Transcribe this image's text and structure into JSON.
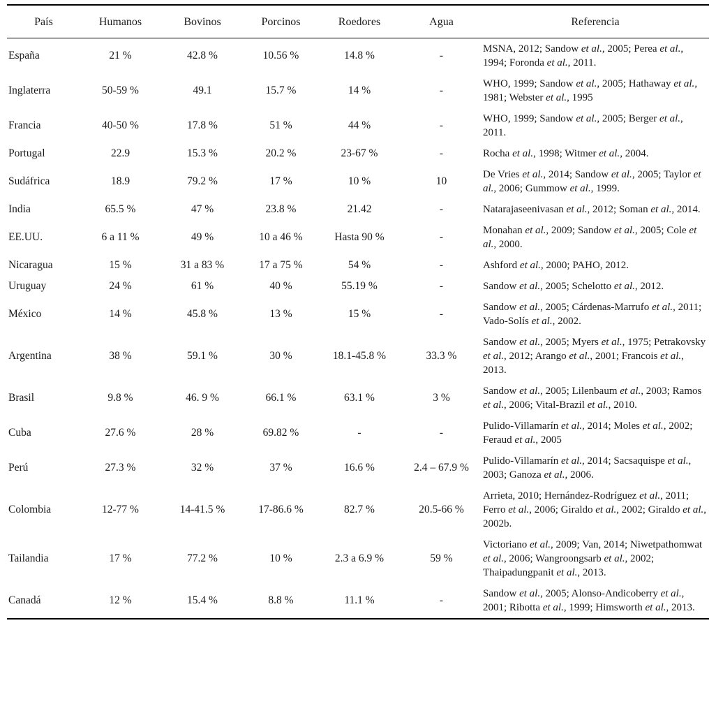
{
  "table": {
    "headers": [
      "País",
      "Humanos",
      "Bovinos",
      "Porcinos",
      "Roedores",
      "Agua",
      "Referencia"
    ],
    "rows": [
      {
        "pais": "España",
        "humanos": "21 %",
        "bovinos": "42.8 %",
        "porcinos": "10.56 %",
        "roedores": "14.8 %",
        "agua": "-",
        "referencia": "MSNA, 2012; Sandow et al., 2005; Perea et al., 1994; Foronda et al., 2011."
      },
      {
        "pais": "Inglaterra",
        "humanos": "50-59 %",
        "bovinos": "49.1",
        "porcinos": "15.7 %",
        "roedores": "14 %",
        "agua": "-",
        "referencia": "WHO, 1999; Sandow et al., 2005; Hathaway et al., 1981; Webster et al., 1995"
      },
      {
        "pais": "Francia",
        "humanos": "40-50 %",
        "bovinos": "17.8 %",
        "porcinos": "51 %",
        "roedores": "44 %",
        "agua": "-",
        "referencia": "WHO, 1999; Sandow et al., 2005; Berger et al., 2011."
      },
      {
        "pais": "Portugal",
        "humanos": "22.9",
        "bovinos": "15.3 %",
        "porcinos": "20.2 %",
        "roedores": "23-67 %",
        "agua": "-",
        "referencia": "Rocha et al., 1998; Witmer et al., 2004."
      },
      {
        "pais": "Sudáfrica",
        "humanos": "18.9",
        "bovinos": "79.2 %",
        "porcinos": "17 %",
        "roedores": "10 %",
        "agua": "10",
        "referencia": "De Vries et al., 2014; Sandow et al., 2005; Taylor et al., 2006; Gummow et al., 1999."
      },
      {
        "pais": "India",
        "humanos": "65.5 %",
        "bovinos": "47 %",
        "porcinos": "23.8 %",
        "roedores": "21.42",
        "agua": "-",
        "referencia": "Natarajaseenivasan et al., 2012; Soman et al., 2014."
      },
      {
        "pais": "EE.UU.",
        "humanos": "6 a 11 %",
        "bovinos": "49 %",
        "porcinos": "10 a 46 %",
        "roedores": "Hasta 90 %",
        "agua": "-",
        "referencia": "Monahan et al., 2009; Sandow et al., 2005; Cole et al., 2000."
      },
      {
        "pais": "Nicaragua",
        "humanos": "15 %",
        "bovinos": "31 a 83 %",
        "porcinos": "17 a 75 %",
        "roedores": "54 %",
        "agua": "-",
        "referencia": "Ashford et al., 2000; PAHO, 2012."
      },
      {
        "pais": "Uruguay",
        "humanos": "24 %",
        "bovinos": "61 %",
        "porcinos": "40 %",
        "roedores": "55.19 %",
        "agua": "-",
        "referencia": "Sandow et al., 2005; Schelotto et al., 2012."
      },
      {
        "pais": "México",
        "humanos": "14 %",
        "bovinos": "45.8 %",
        "porcinos": "13 %",
        "roedores": "15 %",
        "agua": "-",
        "referencia": "Sandow et al., 2005; Cárdenas-Marrufo et al., 2011; Vado-Solís et al., 2002."
      },
      {
        "pais": "Argentina",
        "humanos": "38 %",
        "bovinos": "59.1 %",
        "porcinos": "30 %",
        "roedores": "18.1-45.8 %",
        "agua": "33.3 %",
        "referencia": "Sandow et al., 2005; Myers et al., 1975; Petrakovsky et al., 2012; Arango et al., 2001; Francois et al., 2013."
      },
      {
        "pais": "Brasil",
        "humanos": "9.8 %",
        "bovinos": "46. 9 %",
        "porcinos": "66.1 %",
        "roedores": "63.1 %",
        "agua": "3 %",
        "referencia": "Sandow et al., 2005; Lilenbaum et al., 2003; Ramos et al., 2006; Vital-Brazil et al., 2010."
      },
      {
        "pais": "Cuba",
        "humanos": "27.6 %",
        "bovinos": "28 %",
        "porcinos": "69.82 %",
        "roedores": "-",
        "agua": "-",
        "referencia": "Pulido-Villamarín et al., 2014; Moles et al., 2002; Feraud et al., 2005"
      },
      {
        "pais": "Perú",
        "humanos": "27.3 %",
        "bovinos": "32 %",
        "porcinos": "37 %",
        "roedores": "16.6 %",
        "agua": "2.4 – 67.9 %",
        "referencia": "Pulido-Villamarín et al., 2014; Sacsaquispe et al., 2003; Ganoza et al., 2006."
      },
      {
        "pais": "Colombia",
        "humanos": "12-77 %",
        "bovinos": "14-41.5 %",
        "porcinos": "17-86.6 %",
        "roedores": "82.7 %",
        "agua": "20.5-66 %",
        "referencia": "Arrieta, 2010; Hernández-Rodríguez et al., 2011; Ferro et al., 2006; Giraldo et al., 2002; Giraldo et al., 2002b."
      },
      {
        "pais": "Tailandia",
        "humanos": "17 %",
        "bovinos": "77.2 %",
        "porcinos": "10 %",
        "roedores": "2.3 a 6.9 %",
        "agua": "59 %",
        "referencia": "Victoriano et al., 2009; Van, 2014; Niwetpathomwat et al., 2006; Wangroongsarb et al., 2002; Thaipadungpanit et al., 2013."
      },
      {
        "pais": "Canadá",
        "humanos": "12 %",
        "bovinos": "15.4 %",
        "porcinos": "8.8 %",
        "roedores": "11.1 %",
        "agua": "-",
        "referencia": "Sandow et al., 2005; Alonso-Andicoberry et al., 2001; Ribotta et al., 1999; Himsworth et al., 2013."
      }
    ]
  }
}
